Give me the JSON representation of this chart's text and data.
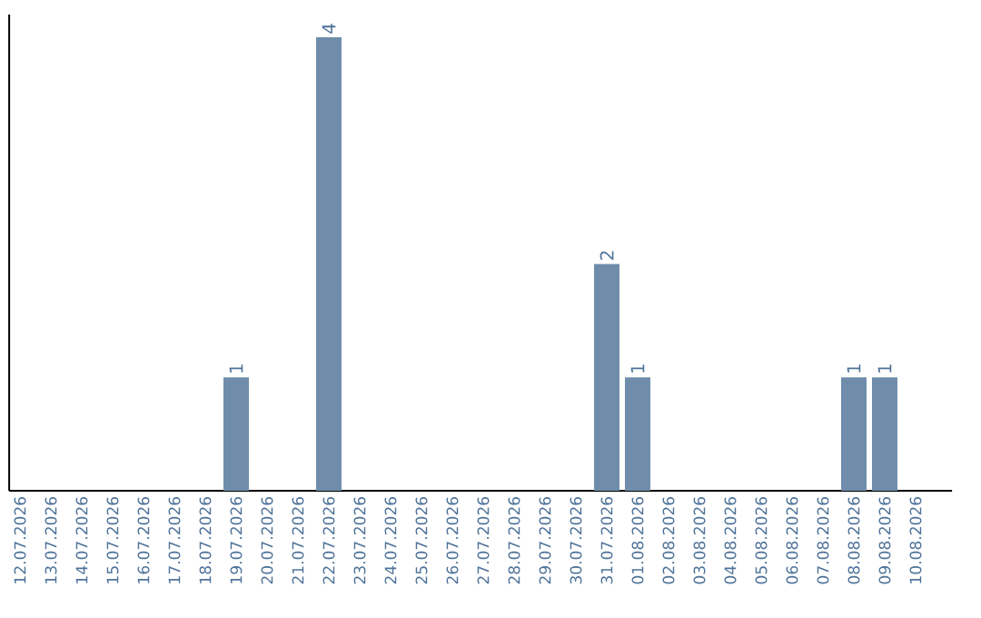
{
  "chart_data": {
    "type": "bar",
    "categories": [
      "12.07.2026",
      "13.07.2026",
      "14.07.2026",
      "15.07.2026",
      "16.07.2026",
      "17.07.2026",
      "18.07.2026",
      "19.07.2026",
      "20.07.2026",
      "21.07.2026",
      "22.07.2026",
      "23.07.2026",
      "24.07.2026",
      "25.07.2026",
      "26.07.2026",
      "27.07.2026",
      "28.07.2026",
      "29.07.2026",
      "30.07.2026",
      "31.07.2026",
      "01.08.2026",
      "02.08.2026",
      "03.08.2026",
      "04.08.2026",
      "05.08.2026",
      "06.08.2026",
      "07.08.2026",
      "08.08.2026",
      "09.08.2026",
      "10.08.2026"
    ],
    "values": [
      0,
      0,
      0,
      0,
      0,
      0,
      0,
      1,
      0,
      0,
      4,
      0,
      0,
      0,
      0,
      0,
      0,
      0,
      0,
      2,
      1,
      0,
      0,
      0,
      0,
      0,
      0,
      1,
      1,
      0
    ],
    "value_labels": [
      null,
      null,
      null,
      null,
      null,
      null,
      null,
      "1",
      null,
      null,
      "4",
      null,
      null,
      null,
      null,
      null,
      null,
      null,
      null,
      "2",
      "1",
      null,
      null,
      null,
      null,
      null,
      null,
      "1",
      "1",
      null
    ],
    "color": "#6f8dab",
    "ylim": [
      0,
      4.2
    ],
    "tick_labels": "x",
    "grid": false
  }
}
